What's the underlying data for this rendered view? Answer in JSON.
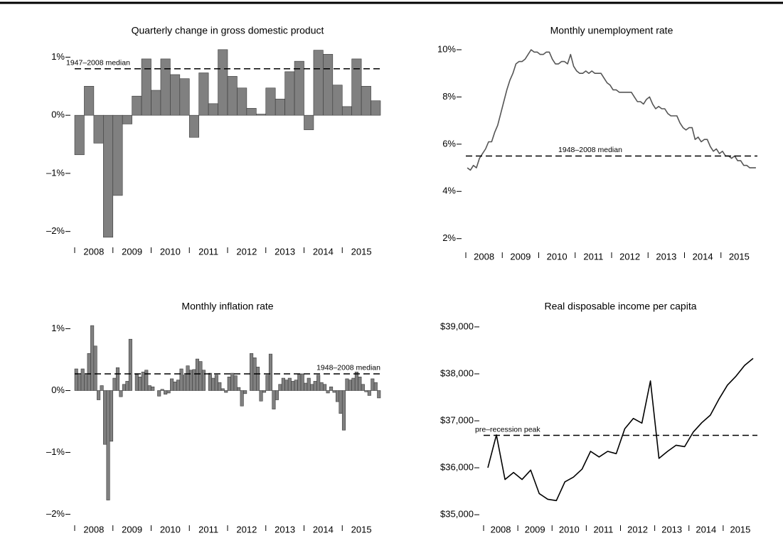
{
  "chart_data": [
    {
      "type": "bar",
      "title": "Quarterly change in gross domestic product",
      "categories": [
        "2008",
        "2009",
        "2010",
        "2011",
        "2012",
        "2013",
        "2014",
        "2015"
      ],
      "values": [
        [
          -0.68,
          0.5,
          -0.48,
          -2.1
        ],
        [
          -1.38,
          -0.15,
          0.33,
          0.97
        ],
        [
          0.43,
          0.97,
          0.7,
          0.63
        ],
        [
          -0.38,
          0.73,
          0.2,
          1.13
        ],
        [
          0.67,
          0.47,
          0.12,
          0.02
        ],
        [
          0.47,
          0.28,
          0.75,
          0.93
        ],
        [
          -0.25,
          1.12,
          1.05,
          0.52
        ],
        [
          0.15,
          0.97,
          0.5,
          0.25
        ]
      ],
      "color": "#808080",
      "ylim": [
        -2.2,
        1.25
      ],
      "yticks": [
        {
          "value": -2,
          "label": "–2%"
        },
        {
          "value": -1,
          "label": "–1%"
        },
        {
          "value": 0,
          "label": "0%"
        },
        {
          "value": 1,
          "label": "1%"
        }
      ],
      "reference_line": {
        "value": 0.8,
        "label": "1947–2008 median",
        "label_position": "left"
      }
    },
    {
      "type": "line",
      "title": "Monthly unemployment rate",
      "categories": [
        "2008",
        "2009",
        "2010",
        "2011",
        "2012",
        "2013",
        "2014",
        "2015"
      ],
      "values": [
        [
          5.0,
          4.9,
          5.1,
          5.0,
          5.4,
          5.6,
          5.8,
          6.1,
          6.1,
          6.5,
          6.8,
          7.3
        ],
        [
          7.8,
          8.3,
          8.7,
          9.0,
          9.4,
          9.5,
          9.5,
          9.6,
          9.8,
          10.0,
          9.9,
          9.9
        ],
        [
          9.8,
          9.8,
          9.9,
          9.9,
          9.6,
          9.4,
          9.4,
          9.5,
          9.5,
          9.4,
          9.8,
          9.3
        ],
        [
          9.1,
          9.0,
          9.0,
          9.1,
          9.0,
          9.1,
          9.0,
          9.0,
          9.0,
          8.8,
          8.6,
          8.5
        ],
        [
          8.3,
          8.3,
          8.2,
          8.2,
          8.2,
          8.2,
          8.2,
          8.0,
          7.8,
          7.8,
          7.7,
          7.9
        ],
        [
          8.0,
          7.7,
          7.5,
          7.6,
          7.5,
          7.5,
          7.3,
          7.2,
          7.2,
          7.2,
          6.9,
          6.7
        ],
        [
          6.6,
          6.7,
          6.7,
          6.2,
          6.3,
          6.1,
          6.2,
          6.2,
          5.9,
          5.7,
          5.8,
          5.6
        ],
        [
          5.7,
          5.5,
          5.5,
          5.4,
          5.5,
          5.3,
          5.3,
          5.1,
          5.1,
          5.0,
          5.0,
          5.0
        ]
      ],
      "color": "#555555",
      "ylim": [
        1.6,
        10.3
      ],
      "yticks": [
        {
          "value": 2,
          "label": "2%"
        },
        {
          "value": 4,
          "label": "4%"
        },
        {
          "value": 6,
          "label": "6%"
        },
        {
          "value": 8,
          "label": "8%"
        },
        {
          "value": 10,
          "label": "10%"
        }
      ],
      "reference_line": {
        "value": 5.5,
        "label": "1948–2008 median",
        "label_position": "center"
      }
    },
    {
      "type": "bar",
      "title": "Monthly inflation rate",
      "categories": [
        "2008",
        "2009",
        "2010",
        "2011",
        "2012",
        "2013",
        "2014",
        "2015"
      ],
      "values": [
        [
          0.35,
          0.25,
          0.35,
          0.25,
          0.6,
          1.05,
          0.72,
          -0.15,
          0.08,
          -0.87,
          -1.77,
          -0.82
        ],
        [
          0.2,
          0.37,
          -0.1,
          0.1,
          0.15,
          0.83,
          0.0,
          0.26,
          0.22,
          0.3,
          0.33,
          0.08
        ],
        [
          0.06,
          0.0,
          -0.09,
          0.02,
          -0.06,
          -0.04,
          0.19,
          0.14,
          0.17,
          0.35,
          0.25,
          0.4
        ],
        [
          0.33,
          0.34,
          0.51,
          0.47,
          0.33,
          0.0,
          0.28,
          0.2,
          0.25,
          0.13,
          0.03,
          -0.03
        ],
        [
          0.22,
          0.28,
          0.24,
          0.05,
          -0.25,
          -0.05,
          0.0,
          0.6,
          0.53,
          0.38,
          -0.17,
          -0.03
        ],
        [
          0.25,
          0.59,
          -0.3,
          -0.15,
          0.1,
          0.2,
          0.17,
          0.2,
          0.15,
          0.17,
          0.27,
          0.27
        ],
        [
          0.12,
          0.2,
          0.1,
          0.15,
          0.25,
          0.13,
          0.1,
          -0.04,
          0.06,
          -0.03,
          -0.18,
          -0.37
        ],
        [
          -0.64,
          0.19,
          0.17,
          0.2,
          0.3,
          0.22,
          0.1,
          -0.02,
          -0.08,
          0.19,
          0.13,
          -0.12
        ]
      ],
      "color": "#808080",
      "ylim": [
        -2.2,
        1.2
      ],
      "yticks": [
        {
          "value": -2,
          "label": "–2%"
        },
        {
          "value": -1,
          "label": "–1%"
        },
        {
          "value": 0,
          "label": "0%"
        },
        {
          "value": 1,
          "label": "1%"
        }
      ],
      "reference_line": {
        "value": 0.27,
        "label": "1948–2008 median",
        "label_position": "right"
      }
    },
    {
      "type": "line",
      "title": "Real disposable income per capita",
      "categories": [
        "2008",
        "2009",
        "2010",
        "2011",
        "2012",
        "2013",
        "2014",
        "2015"
      ],
      "values": [
        [
          36000,
          36700,
          35750,
          35900
        ],
        [
          35750,
          35950,
          35450,
          35330
        ],
        [
          35300,
          35700,
          35800,
          35970
        ],
        [
          36350,
          36230,
          36350,
          36300
        ],
        [
          36830,
          37050,
          36950,
          37850
        ],
        [
          36200,
          36350,
          36480,
          36450
        ],
        [
          36760,
          36960,
          37120,
          37460
        ],
        [
          37760,
          37950,
          38180,
          38330
        ]
      ],
      "color": "#000000",
      "ylim": [
        34730,
        39150
      ],
      "yticks": [
        {
          "value": 35000,
          "label": "$35,000"
        },
        {
          "value": 36000,
          "label": "$36,000"
        },
        {
          "value": 37000,
          "label": "$37,000"
        },
        {
          "value": 38000,
          "label": "$38,000"
        },
        {
          "value": 39000,
          "label": "$39,000"
        }
      ],
      "reference_line": {
        "value": 36690,
        "label": "pre–recession peak",
        "label_position": "left"
      }
    }
  ]
}
